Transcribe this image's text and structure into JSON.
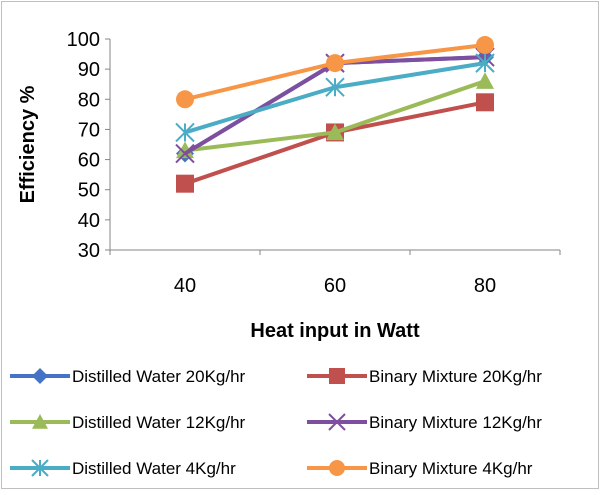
{
  "chart_data": {
    "type": "line",
    "xlabel": "Heat input in Watt",
    "ylabel": "Efficiency %",
    "categories": [
      "40",
      "60",
      "80"
    ],
    "ylim": [
      30,
      100
    ],
    "yticks": [
      30,
      40,
      50,
      60,
      70,
      80,
      90,
      100
    ],
    "grid": false,
    "legend_position": "bottom",
    "series": [
      {
        "name": "Distilled Water 20Kg/hr",
        "values": [
          62,
          92,
          94
        ],
        "color": "#4472c4",
        "marker": "diamond"
      },
      {
        "name": "Binary Mixture 20Kg/hr",
        "values": [
          52,
          69,
          79
        ],
        "color": "#c0504d",
        "marker": "square"
      },
      {
        "name": "Distilled Water 12Kg/hr",
        "values": [
          63,
          69,
          86
        ],
        "color": "#9bbb59",
        "marker": "triangle"
      },
      {
        "name": "Binary Mixture 12Kg/hr",
        "values": [
          62,
          92,
          94
        ],
        "color": "#7f4f9f",
        "marker": "x"
      },
      {
        "name": "Distilled Water 4Kg/hr",
        "values": [
          69,
          84,
          92
        ],
        "color": "#4bacc6",
        "marker": "star"
      },
      {
        "name": "Binary Mixture 4Kg/hr",
        "values": [
          80,
          92,
          98
        ],
        "color": "#f79646",
        "marker": "circle"
      }
    ]
  }
}
